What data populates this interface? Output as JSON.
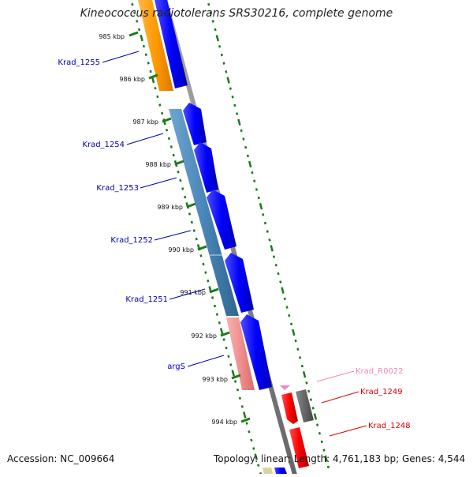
{
  "header": {
    "title": "Kineococcus radiotolerans SRS30216, complete genome"
  },
  "footer": {
    "accession": "Accession: NC_009664",
    "stats": "Topology: linear; Length: 4,761,183 bp; Genes: 4,544"
  },
  "colors": {
    "background": "#ffffff",
    "backbone": "#888888",
    "tick": "#1a7a1a",
    "forward_cds": "#0000ff",
    "reverse_cds": "#ff0000",
    "forward_label": "#0000aa",
    "reverse_label": "#dd0000",
    "rna_label": "#ee88bb",
    "gene_orange": "#ff9900",
    "gene_steelblue": "#4a86b8",
    "gene_salmon": "#f08f8f",
    "pseudo_gray": "#666666"
  },
  "ruler": {
    "ticks": [
      "985 kbp",
      "986 kbp",
      "987 kbp",
      "988 kbp",
      "989 kbp",
      "990 kbp",
      "991 kbp",
      "992 kbp",
      "993 kbp",
      "994 kbp"
    ]
  },
  "genes": [
    {
      "label": "Krad_1255",
      "strand": "forward",
      "color": "forward_label"
    },
    {
      "label": "Krad_1254",
      "strand": "forward",
      "color": "forward_label"
    },
    {
      "label": "Krad_1253",
      "strand": "forward",
      "color": "forward_label"
    },
    {
      "label": "Krad_1252",
      "strand": "forward",
      "color": "forward_label"
    },
    {
      "label": "Krad_1251",
      "strand": "forward",
      "color": "forward_label"
    },
    {
      "label": "argS",
      "strand": "forward",
      "color": "forward_label"
    },
    {
      "label": "Krad_R0022",
      "strand": "reverse",
      "color": "rna_label"
    },
    {
      "label": "Krad_1249",
      "strand": "reverse",
      "color": "reverse_label"
    },
    {
      "label": "Krad_1248",
      "strand": "reverse",
      "color": "reverse_label"
    }
  ]
}
